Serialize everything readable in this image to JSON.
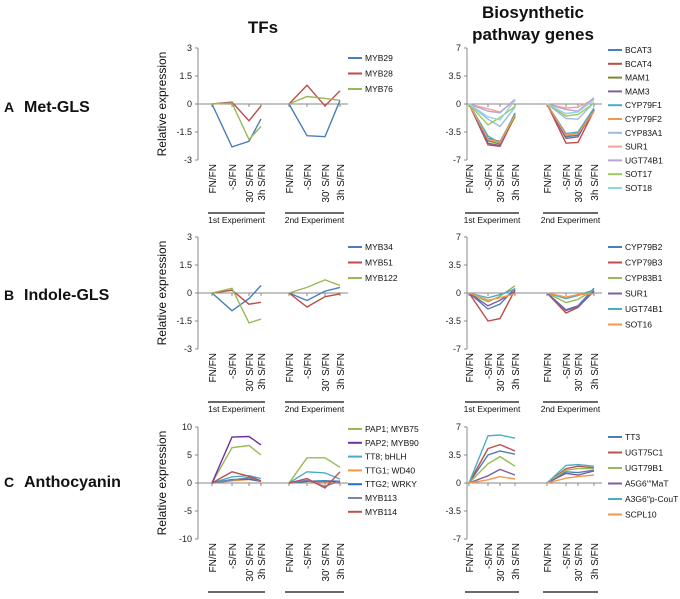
{
  "headers": {
    "tfs": "TFs",
    "biosynthetic": [
      "Biosynthetic",
      "pathway genes"
    ]
  },
  "row_labels": [
    {
      "letter": "A",
      "name": "Met-GLS"
    },
    {
      "letter": "B",
      "name": "Indole-GLS"
    },
    {
      "letter": "C",
      "name": "Anthocyanin"
    }
  ],
  "ylabel": "Relative expression",
  "x_tick_labels": [
    "FN/FN",
    "-S/FN",
    "30' S/FN",
    "3h S/FN"
  ],
  "experiments": [
    "1st Experiment",
    "2nd Experiment"
  ],
  "chart_data": [
    {
      "id": "metgls-tfs",
      "type": "line",
      "row": 0,
      "col": 0,
      "ylim": [
        -3,
        3
      ],
      "yticks": [
        "3",
        "1.5",
        "0",
        "-1.5",
        "-3"
      ],
      "categories": [
        "FN/FN",
        "-S/FN",
        "30' S/FN",
        "3h S/FN"
      ],
      "groups": [
        "1st Experiment",
        "2nd Experiment"
      ],
      "series": [
        {
          "name": "MYB29",
          "color": "#4a7ebb",
          "exp1": [
            0,
            -2.3,
            -2.0,
            -0.8
          ],
          "exp2": [
            0,
            -1.7,
            -1.75,
            0.2
          ]
        },
        {
          "name": "MYB28",
          "color": "#be4b48",
          "exp1": [
            0,
            0.1,
            -0.9,
            -0.1
          ],
          "exp2": [
            0,
            1.0,
            -0.1,
            0.7
          ]
        },
        {
          "name": "MYB76",
          "color": "#98b954",
          "exp1": [
            0,
            0.05,
            -1.9,
            -1.2
          ],
          "exp2": [
            0,
            0.4,
            0.3,
            0.2
          ]
        }
      ]
    },
    {
      "id": "metgls-bio",
      "type": "line",
      "row": 0,
      "col": 1,
      "ylim": [
        -7,
        7
      ],
      "yticks": [
        "7",
        "3.5",
        "0",
        "-3.5",
        "-7"
      ],
      "categories": [
        "FN/FN",
        "-S/FN",
        "30' S/FN",
        "3h S/FN"
      ],
      "groups": [
        "1st Experiment",
        "2nd Experiment"
      ],
      "series": [
        {
          "name": "BCAT3",
          "color": "#4a7ebb",
          "exp1": [
            0,
            -4.3,
            -4.7,
            -1.3
          ],
          "exp2": [
            0,
            -4.1,
            -3.9,
            -0.9
          ]
        },
        {
          "name": "BCAT4",
          "color": "#be4b48",
          "exp1": [
            0,
            -5.1,
            -5.3,
            -1.5
          ],
          "exp2": [
            0,
            -4.9,
            -4.8,
            -0.8
          ]
        },
        {
          "name": "MAM1",
          "color": "#7a8a2e",
          "exp1": [
            0,
            -4.6,
            -5.0,
            -1.6
          ],
          "exp2": [
            0,
            -4.0,
            -3.6,
            -0.7
          ]
        },
        {
          "name": "MAM3",
          "color": "#7d60a0",
          "exp1": [
            0,
            -4.9,
            -5.2,
            -1.2
          ],
          "exp2": [
            0,
            -4.3,
            -4.1,
            -0.6
          ]
        },
        {
          "name": "CYP79F1",
          "color": "#4bacc6",
          "exp1": [
            0,
            -4.0,
            -4.9,
            -1.1
          ],
          "exp2": [
            0,
            -3.7,
            -3.5,
            -0.5
          ]
        },
        {
          "name": "CYP79F2",
          "color": "#f79646",
          "exp1": [
            0,
            -4.4,
            -4.8,
            -1.4
          ],
          "exp2": [
            0,
            -3.9,
            -3.7,
            -0.9
          ]
        },
        {
          "name": "CYP83A1",
          "color": "#9bbbe0",
          "exp1": [
            0,
            -1.9,
            -2.8,
            -0.4
          ],
          "exp2": [
            0,
            -1.8,
            -1.9,
            0.2
          ]
        },
        {
          "name": "SUR1",
          "color": "#f5a19b",
          "exp1": [
            0,
            -0.6,
            -1.0,
            0.4
          ],
          "exp2": [
            0,
            -0.5,
            -0.4,
            0.6
          ]
        },
        {
          "name": "UGT74B1",
          "color": "#b8a3d4",
          "exp1": [
            0,
            -0.9,
            -1.1,
            0.6
          ],
          "exp2": [
            0,
            -0.7,
            -0.9,
            0.8
          ]
        },
        {
          "name": "SOT17",
          "color": "#9ccc5a",
          "exp1": [
            0,
            -2.6,
            -1.7,
            -0.3
          ],
          "exp2": [
            0,
            -1.5,
            -1.3,
            0.1
          ]
        },
        {
          "name": "SOT18",
          "color": "#8fd4e8",
          "exp1": [
            0,
            -1.6,
            -2.0,
            0.5
          ],
          "exp2": [
            0,
            -1.2,
            -1.0,
            0.5
          ]
        }
      ]
    },
    {
      "id": "indolegls-tfs",
      "type": "line",
      "row": 1,
      "col": 0,
      "ylim": [
        -3,
        3
      ],
      "yticks": [
        "3",
        "1.5",
        "0",
        "-1.5",
        "-3"
      ],
      "categories": [
        "FN/FN",
        "-S/FN",
        "30' S/FN",
        "3h S/FN"
      ],
      "groups": [
        "1st Experiment",
        "2nd Experiment"
      ],
      "series": [
        {
          "name": "MYB34",
          "color": "#4a7ebb",
          "exp1": [
            0,
            -0.95,
            -0.3,
            0.4
          ],
          "exp2": [
            0,
            -0.4,
            0.1,
            0.3
          ]
        },
        {
          "name": "MYB51",
          "color": "#be4b48",
          "exp1": [
            0,
            0.15,
            -0.6,
            -0.5
          ],
          "exp2": [
            0,
            -0.75,
            -0.2,
            -0.05
          ]
        },
        {
          "name": "MYB122",
          "color": "#98b954",
          "exp1": [
            0,
            0.25,
            -1.6,
            -1.4
          ],
          "exp2": [
            0,
            0.3,
            0.7,
            0.4
          ]
        }
      ]
    },
    {
      "id": "indolegls-bio",
      "type": "line",
      "row": 1,
      "col": 1,
      "ylim": [
        -7,
        7
      ],
      "yticks": [
        "7",
        "3.5",
        "0",
        "-3.5",
        "-7"
      ],
      "categories": [
        "FN/FN",
        "-S/FN",
        "30' S/FN",
        "3h S/FN"
      ],
      "groups": [
        "1st Experiment",
        "2nd Experiment"
      ],
      "series": [
        {
          "name": "CYP79B2",
          "color": "#4a7ebb",
          "exp1": [
            0,
            -2.0,
            -1.4,
            0.6
          ],
          "exp2": [
            0,
            -2.1,
            -1.6,
            0.6
          ]
        },
        {
          "name": "CYP79B3",
          "color": "#be4b48",
          "exp1": [
            0,
            -3.5,
            -3.2,
            0.4
          ],
          "exp2": [
            0,
            -2.5,
            -1.8,
            0.3
          ]
        },
        {
          "name": "CYP83B1",
          "color": "#98b954",
          "exp1": [
            0,
            -1.1,
            -0.4,
            0.9
          ],
          "exp2": [
            0,
            -1.2,
            -0.8,
            0.4
          ]
        },
        {
          "name": "SUR1",
          "color": "#7d60a0",
          "exp1": [
            0,
            -1.6,
            -0.9,
            0.2
          ],
          "exp2": [
            0,
            -2.2,
            -1.7,
            0.2
          ]
        },
        {
          "name": "UGT74B1",
          "color": "#4bacc6",
          "exp1": [
            0,
            -0.6,
            -0.2,
            0.5
          ],
          "exp2": [
            0,
            -0.7,
            -0.3,
            0.4
          ]
        },
        {
          "name": "SOT16",
          "color": "#f79646",
          "exp1": [
            0,
            -0.9,
            -0.6,
            -0.1
          ],
          "exp2": [
            0,
            -0.5,
            -0.2,
            -0.1
          ]
        }
      ]
    },
    {
      "id": "anthocyanin-tfs",
      "type": "line",
      "row": 2,
      "col": 0,
      "ylim": [
        -10,
        10
      ],
      "yticks": [
        "10",
        "5",
        "0",
        "-5",
        "-10"
      ],
      "categories": [
        "FN/FN",
        "-S/FN",
        "30' S/FN",
        "3h S/FN"
      ],
      "groups": [
        "1st Experiment",
        "2nd Experiment"
      ],
      "series": [
        {
          "name": "PAP1; MYB75",
          "color": "#98b954",
          "exp1": [
            0,
            6.3,
            6.7,
            5.0
          ],
          "exp2": [
            0,
            4.5,
            4.5,
            2.8
          ]
        },
        {
          "name": "PAP2; MYB90",
          "color": "#7030a0",
          "exp1": [
            0,
            8.2,
            8.3,
            6.8
          ],
          "exp2": [
            0,
            0.4,
            0.2,
            0.2
          ]
        },
        {
          "name": "TT8; bHLH",
          "color": "#4bacc6",
          "exp1": [
            0,
            1.1,
            1.3,
            0.8
          ],
          "exp2": [
            0,
            2.0,
            1.8,
            0.7
          ]
        },
        {
          "name": "TTG1; WD40",
          "color": "#f79646",
          "exp1": [
            0,
            0.4,
            0.6,
            0.3
          ],
          "exp2": [
            0,
            0.3,
            0.2,
            -0.1
          ]
        },
        {
          "name": "TTG2; WRKY",
          "color": "#1f6fc5",
          "exp1": [
            0,
            0.6,
            0.7,
            0.3
          ],
          "exp2": [
            0,
            0.3,
            0.4,
            0.3
          ]
        },
        {
          "name": "MYB113",
          "color": "#7f7fb2",
          "exp1": [
            0,
            0.5,
            1.0,
            0.3
          ],
          "exp2": [
            0,
            0.5,
            -0.6,
            0.4
          ]
        },
        {
          "name": "MYB114",
          "color": "#c0504d",
          "exp1": [
            0,
            2.0,
            1.2,
            0.4
          ],
          "exp2": [
            0,
            0.8,
            -0.9,
            2.0
          ]
        }
      ]
    },
    {
      "id": "anthocyanin-bio",
      "type": "line",
      "row": 2,
      "col": 1,
      "ylim": [
        -7,
        7
      ],
      "yticks": [
        "7",
        "3.5",
        "0",
        "-3.5",
        "-7"
      ],
      "categories": [
        "FN/FN",
        "-S/FN",
        "30' S/FN",
        "3h S/FN"
      ],
      "groups": [
        "1st Experiment",
        "2nd Experiment"
      ],
      "series": [
        {
          "name": "TT3",
          "color": "#4a7ebb",
          "exp1": [
            0,
            3.5,
            4.0,
            3.6
          ],
          "exp2": [
            0,
            1.4,
            1.3,
            1.6
          ]
        },
        {
          "name": "UGT75C1",
          "color": "#c0504d",
          "exp1": [
            0,
            4.3,
            4.8,
            4.0
          ],
          "exp2": [
            0,
            1.8,
            2.1,
            1.9
          ]
        },
        {
          "name": "UGT79B1",
          "color": "#98b954",
          "exp1": [
            0,
            2.4,
            3.3,
            2.1
          ],
          "exp2": [
            0,
            1.6,
            1.8,
            1.8
          ]
        },
        {
          "name": "A5G6′′′MaT",
          "color": "#7d60a0",
          "exp1": [
            0,
            0.9,
            1.7,
            1.0
          ],
          "exp2": [
            0,
            1.2,
            1.0,
            1.5
          ]
        },
        {
          "name": "A3G6′′p-CouT",
          "color": "#4bacc6",
          "exp1": [
            0,
            5.9,
            6.0,
            5.6
          ],
          "exp2": [
            0,
            2.2,
            2.3,
            2.1
          ]
        },
        {
          "name": "SCPL10",
          "color": "#f79646",
          "exp1": [
            0,
            0.4,
            0.8,
            0.5
          ],
          "exp2": [
            0,
            0.6,
            0.8,
            1.0
          ]
        }
      ]
    }
  ]
}
